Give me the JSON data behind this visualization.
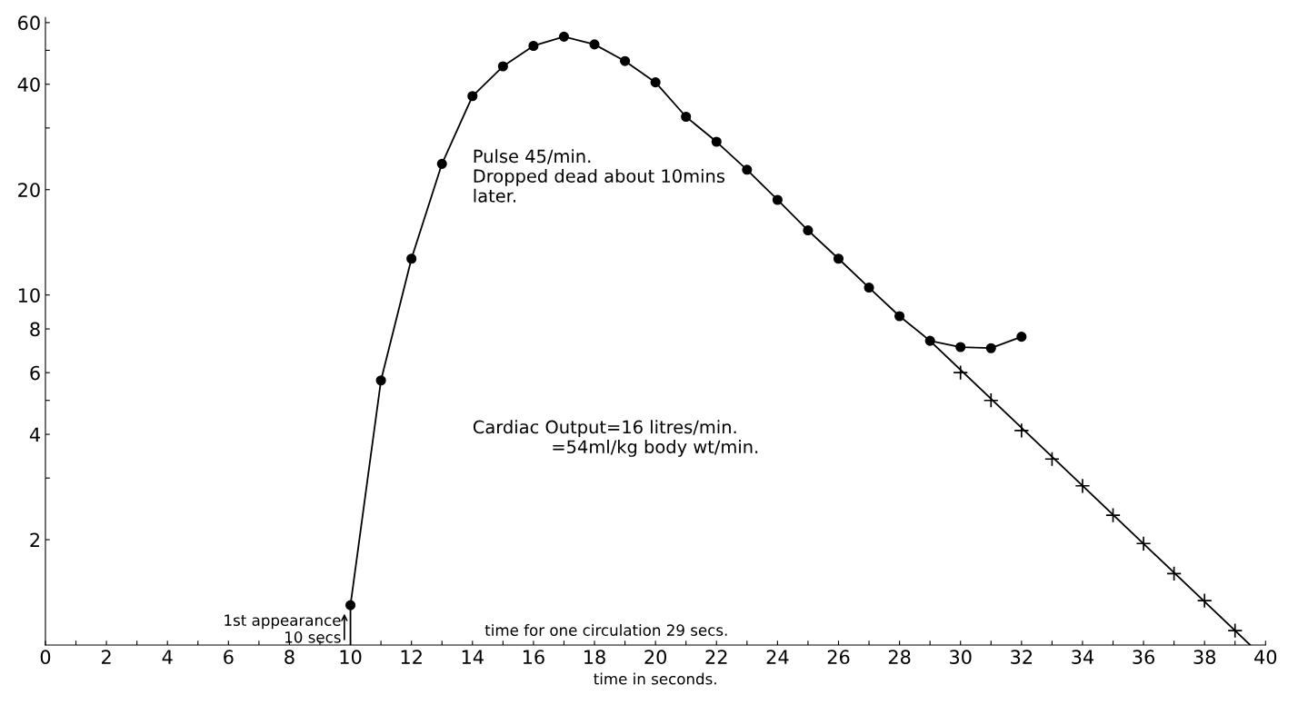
{
  "chart_data": {
    "type": "line",
    "xlabel": "time in seconds.",
    "log": "y",
    "grid": false,
    "line_style": "solid",
    "xlim": [
      0,
      40
    ],
    "xticks": [
      0,
      {
        "value": 1,
        "label": null
      },
      2,
      {
        "value": 3,
        "label": null
      },
      4,
      {
        "value": 5,
        "label": null
      },
      6,
      {
        "value": 7,
        "label": null
      },
      8,
      {
        "value": 9,
        "label": null
      },
      10,
      {
        "value": 11,
        "label": null
      },
      12,
      {
        "value": 13,
        "label": null
      },
      14,
      {
        "value": 15,
        "label": null
      },
      16,
      {
        "value": 17,
        "label": null
      },
      18,
      {
        "value": 19,
        "label": null
      },
      20,
      {
        "value": 21,
        "label": null
      },
      22,
      {
        "value": 23,
        "label": null
      },
      24,
      {
        "value": 25,
        "label": null
      },
      26,
      {
        "value": 27,
        "label": null
      },
      28,
      {
        "value": 29,
        "label": null
      },
      30,
      {
        "value": 31,
        "label": null
      },
      32,
      {
        "value": 33,
        "label": null
      },
      34,
      {
        "value": 35,
        "label": null
      },
      36,
      {
        "value": 37,
        "label": null
      },
      38,
      {
        "value": 39,
        "label": null
      },
      40
    ],
    "ylim": [
      1,
      62
    ],
    "yticks": [
      2,
      {
        "value": 3,
        "label": null
      },
      4,
      {
        "value": 5,
        "label": null
      },
      6,
      8,
      10,
      20,
      {
        "value": 30,
        "label": null
      },
      40,
      {
        "value": 50,
        "label": null
      },
      60
    ],
    "series": [
      {
        "marker": "circle",
        "color": "#000000",
        "x": [
          10,
          11,
          12,
          13,
          14,
          15,
          16,
          17,
          18,
          19,
          20,
          21,
          22,
          23,
          24,
          25,
          26,
          27,
          28,
          29,
          30,
          31,
          32
        ],
        "values": [
          1.3,
          5.7,
          12.7,
          23.7,
          37,
          45,
          51.5,
          54.7,
          52,
          46.6,
          40.5,
          32.3,
          27.4,
          22.8,
          18.7,
          15.3,
          12.7,
          10.5,
          8.7,
          7.4,
          7.1,
          7.05,
          7.6
        ]
      },
      {
        "marker": "none",
        "color": "#000000",
        "x": [
          10,
          10
        ],
        "values": [
          1,
          1.3
        ]
      },
      {
        "marker": "none",
        "color": "#000000",
        "x": [
          29,
          39.5
        ],
        "values": [
          7.4,
          1
        ]
      },
      {
        "type": "scatter",
        "marker": "cross",
        "color": "#000000",
        "x": [
          30,
          31,
          32,
          33,
          34,
          35,
          36,
          37,
          38,
          39
        ],
        "values": [
          6.0,
          5.0,
          4.1,
          3.4,
          2.85,
          2.35,
          1.95,
          1.6,
          1.34,
          1.1
        ]
      }
    ],
    "annotations": [
      {
        "text": "1st appearance\n10 secs",
        "x": 9.8,
        "y": 1.25
      },
      "Pulse 45/min.\nDropped dead about 10mins\nlater.",
      "Cardiac Output=16 litres/min.\n              =54ml/kg body wt/min.",
      "time for one circulation 29 secs."
    ]
  }
}
